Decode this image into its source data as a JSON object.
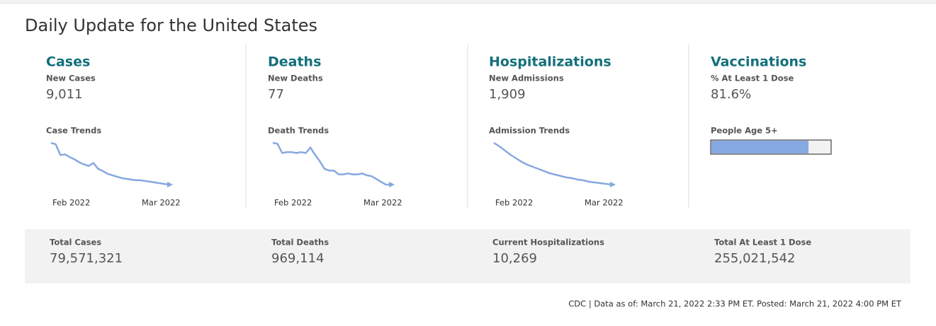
{
  "header": {
    "title": "Daily Update for the United States"
  },
  "sections": [
    {
      "heading": "Cases",
      "metric_label": "New Cases",
      "metric_value": "9,011",
      "trend": {
        "label": "Case Trends",
        "x_labels": [
          "Feb 2022",
          "Mar 2022"
        ],
        "values": [
          68,
          66,
          51,
          52,
          48,
          45,
          41,
          38,
          36,
          40,
          32,
          29,
          25,
          23,
          21,
          19,
          18,
          17,
          16,
          16,
          15,
          14,
          13,
          12,
          11,
          10
        ]
      },
      "total_label": "Total Cases",
      "total_value": "79,571,321"
    },
    {
      "heading": "Deaths",
      "metric_label": "New Deaths",
      "metric_value": "77",
      "trend": {
        "label": "Death Trends",
        "x_labels": [
          "Feb 2022",
          "Mar 2022"
        ],
        "values": [
          68,
          67,
          57,
          58,
          58,
          57,
          58,
          57,
          63,
          55,
          48,
          40,
          38,
          38,
          34,
          34,
          35,
          34,
          34,
          35,
          33,
          32,
          29,
          26,
          23,
          23
        ]
      },
      "total_label": "Total Deaths",
      "total_value": "969,114"
    },
    {
      "heading": "Hospitalizations",
      "metric_label": "New Admissions",
      "metric_value": "1,909",
      "trend": {
        "label": "Admission Trends",
        "x_labels": [
          "Feb 2022",
          "Mar 2022"
        ],
        "values": [
          67,
          62,
          56,
          50,
          45,
          40,
          36,
          33,
          30,
          27,
          24,
          22,
          20,
          18,
          17,
          15,
          14,
          12,
          11,
          10,
          9,
          8
        ]
      },
      "total_label": "Current Hospitalizations",
      "total_value": "10,269"
    },
    {
      "heading": "Vaccinations",
      "metric_label": "% At Least 1 Dose",
      "metric_value": {
        "value": 81.6,
        "label": "81.6%"
      },
      "bar_label": "People Age 5+",
      "total_label": "Total At Least 1 Dose",
      "total_value": "255,021,542"
    }
  ],
  "footer": "CDC | Data as of: March 21, 2022 2:33 PM ET. Posted: March 21, 2022 4:00 PM ET"
}
